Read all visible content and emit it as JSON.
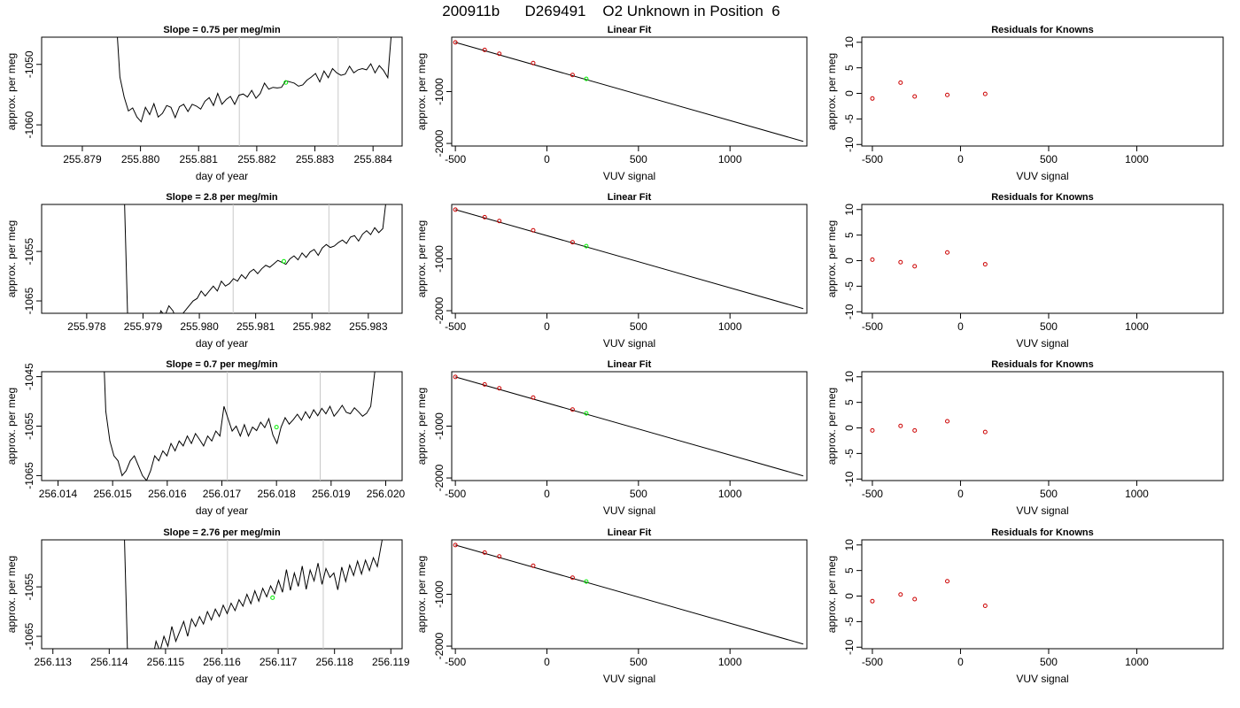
{
  "title": "200911b      D269491    O2 Unknown in Position  6",
  "colors": {
    "line": "#000000",
    "vline": "#c8c8c8",
    "known": "#cc0000",
    "unknown": "#00ee00"
  },
  "rows": [
    {
      "trace": {
        "title": "Slope =  0.75  per meg/min",
        "xlabel": "day of year",
        "ylabel": "approx. per meg",
        "xlim": [
          255.8783,
          255.8845
        ],
        "ylim": [
          -1063.5,
          -1045.5
        ],
        "xticks": [
          "255.879",
          "255.880",
          "255.881",
          "255.882",
          "255.883",
          "255.884"
        ],
        "xtick_values": [
          255.879,
          255.88,
          255.881,
          255.882,
          255.883,
          255.884
        ],
        "yticks": [
          "-1050",
          "-1060"
        ],
        "ytick_values": [
          -1050,
          -1060
        ],
        "vlines": [
          255.8817,
          255.8834
        ],
        "start_day": 255.8795,
        "end_day": 255.8844,
        "levels": [
          -1022.9,
          -1040.9,
          -1052.1,
          -1055.4,
          -1057.7,
          -1057.2,
          -1058.7,
          -1059.5,
          -1057.1,
          -1058.3,
          -1056.5,
          -1058.7,
          -1058.1,
          -1056.8,
          -1057.1,
          -1058.8,
          -1057.0,
          -1056.6,
          -1057.8,
          -1056.6,
          -1056.9,
          -1057.4,
          -1056.1,
          -1055.5,
          -1056.8,
          -1054.8,
          -1056.6,
          -1055.8,
          -1055.3,
          -1056.6,
          -1055.1,
          -1054.9,
          -1055.4,
          -1054.3,
          -1055.6,
          -1054.8,
          -1053.1,
          -1054.1,
          -1053.8,
          -1053.9,
          -1053.8,
          -1052.7,
          -1052.9,
          -1053.1,
          -1053.6,
          -1053.4,
          -1052.6,
          -1052.1,
          -1051.5,
          -1052.9,
          -1051.1,
          -1052.2,
          -1050.7,
          -1051.4,
          -1051.8,
          -1051.6,
          -1050.3,
          -1051.4,
          -1050.9,
          -1050.7,
          -1050.9,
          -1049.9,
          -1051.4,
          -1050.2,
          -1051.0,
          -1052.2,
          -1043.5,
          -1033.8
        ],
        "unknown_point": [
          255.8825,
          -1053.0
        ]
      },
      "fit": {
        "title": "Linear Fit",
        "xlabel": "VUV signal",
        "ylabel": "approx. per meg",
        "xlim": [
          -520,
          1420
        ],
        "ylim": [
          -2050,
          50
        ],
        "xticks": [
          "-500",
          "0",
          "500",
          "1000"
        ],
        "xtick_values": [
          -500,
          0,
          500,
          1000
        ],
        "yticks": [
          "-1000",
          "-2000"
        ],
        "ytick_values": [
          -1000,
          -2000
        ],
        "line": [
          [
            -500,
            -50
          ],
          [
            1400,
            -1960
          ]
        ],
        "knowns": [
          [
            -500,
            -50
          ],
          [
            -340,
            -195
          ],
          [
            -260,
            -270
          ],
          [
            -75,
            -450
          ],
          [
            140,
            -680
          ]
        ],
        "unknown": [
          [
            215,
            -755
          ]
        ]
      },
      "resid": {
        "title": "Residuals for Knowns",
        "xlabel": "VUV signal",
        "ylabel": "approx. per meg",
        "xlim": [
          -560,
          1490
        ],
        "ylim": [
          -10.3,
          11
        ],
        "xticks": [
          "-500",
          "0",
          "500",
          "1000"
        ],
        "xtick_values": [
          -500,
          0,
          500,
          1000
        ],
        "yticks": [
          "-10",
          "-5",
          "0",
          "5",
          "10"
        ],
        "ytick_values": [
          -10,
          -5,
          0,
          5,
          10
        ],
        "points": [
          [
            -500,
            -1.0
          ],
          [
            -340,
            2.1
          ],
          [
            -260,
            -0.6
          ],
          [
            -75,
            -0.3
          ],
          [
            140,
            -0.1
          ]
        ]
      }
    },
    {
      "trace": {
        "title": "Slope =  2.8  per meg/min",
        "xlabel": "day of year",
        "ylabel": "approx. per meg",
        "xlim": [
          255.9772,
          255.9836
        ],
        "ylim": [
          -1067.5,
          -1045.5
        ],
        "xticks": [
          "255.978",
          "255.979",
          "255.980",
          "255.981",
          "255.982",
          "255.983"
        ],
        "xtick_values": [
          255.978,
          255.979,
          255.98,
          255.981,
          255.982,
          255.983
        ],
        "yticks": [
          "-1055",
          "-1065"
        ],
        "ytick_values": [
          -1055,
          -1065
        ],
        "vlines": [
          255.9806,
          255.9823
        ],
        "start_day": 255.9786,
        "end_day": 255.9834,
        "levels": [
          -1020,
          -1045,
          -1075,
          -1085,
          -1080,
          -1072,
          -1070,
          -1068,
          -1069,
          -1070,
          -1067,
          -1068,
          -1066,
          -1067,
          -1069,
          -1068,
          -1067,
          -1066,
          -1065,
          -1064.5,
          -1063,
          -1064,
          -1063,
          -1062,
          -1063,
          -1061,
          -1062,
          -1061.5,
          -1060.5,
          -1061,
          -1059.7,
          -1060.5,
          -1059.2,
          -1058.6,
          -1059.5,
          -1058.5,
          -1057.8,
          -1058.2,
          -1057.5,
          -1056.8,
          -1057.2,
          -1057.6,
          -1056.5,
          -1055.9,
          -1056.7,
          -1055.3,
          -1056.2,
          -1055.1,
          -1054.6,
          -1055.8,
          -1054.3,
          -1053.6,
          -1054.2,
          -1053.9,
          -1053.2,
          -1052.7,
          -1053.4,
          -1052.1,
          -1051.8,
          -1052.9,
          -1051.5,
          -1050.8,
          -1051.6,
          -1050.2,
          -1051.2,
          -1050.4,
          -1043.5,
          -1036
        ],
        "unknown_point": [
          255.9815,
          -1057.0
        ]
      },
      "fit": {
        "title": "Linear Fit",
        "xlabel": "VUV signal",
        "ylabel": "approx. per meg",
        "xlim": [
          -520,
          1420
        ],
        "ylim": [
          -2050,
          50
        ],
        "xticks": [
          "-500",
          "0",
          "500",
          "1000"
        ],
        "xtick_values": [
          -500,
          0,
          500,
          1000
        ],
        "yticks": [
          "-1000",
          "-2000"
        ],
        "ytick_values": [
          -1000,
          -2000
        ],
        "line": [
          [
            -500,
            -50
          ],
          [
            1400,
            -1960
          ]
        ],
        "knowns": [
          [
            -500,
            -50
          ],
          [
            -340,
            -195
          ],
          [
            -260,
            -270
          ],
          [
            -75,
            -450
          ],
          [
            140,
            -680
          ]
        ],
        "unknown": [
          [
            215,
            -755
          ]
        ]
      },
      "resid": {
        "title": "Residuals for Knowns",
        "xlabel": "VUV signal",
        "ylabel": "approx. per meg",
        "xlim": [
          -560,
          1490
        ],
        "ylim": [
          -10.3,
          11
        ],
        "xticks": [
          "-500",
          "0",
          "500",
          "1000"
        ],
        "xtick_values": [
          -500,
          0,
          500,
          1000
        ],
        "yticks": [
          "-10",
          "-5",
          "0",
          "5",
          "10"
        ],
        "ytick_values": [
          -10,
          -5,
          0,
          5,
          10
        ],
        "points": [
          [
            -500,
            0.2
          ],
          [
            -340,
            -0.3
          ],
          [
            -260,
            -1.1
          ],
          [
            -75,
            1.6
          ],
          [
            140,
            -0.7
          ]
        ]
      }
    },
    {
      "trace": {
        "title": "Slope =  0.7  per meg/min",
        "xlabel": "day of year",
        "ylabel": "approx. per meg",
        "xlim": [
          256.0137,
          256.0203
        ],
        "ylim": [
          -1066.0,
          -1044.0
        ],
        "xticks": [
          "256.014",
          "256.015",
          "256.016",
          "256.017",
          "256.018",
          "256.019",
          "256.020"
        ],
        "xtick_values": [
          256.014,
          256.015,
          256.016,
          256.017,
          256.018,
          256.019,
          256.02
        ],
        "yticks": [
          "-1045",
          "-1055",
          "-1065"
        ],
        "ytick_values": [
          -1045,
          -1055,
          -1065
        ],
        "vlines": [
          256.0171,
          256.0188
        ],
        "start_day": 256.0148,
        "end_day": 256.0198,
        "levels": [
          -1030,
          -1052,
          -1058,
          -1061,
          -1062,
          -1065,
          -1064,
          -1062,
          -1061,
          -1063,
          -1065,
          -1066,
          -1064,
          -1061,
          -1062,
          -1060,
          -1061,
          -1058.5,
          -1060,
          -1058,
          -1059,
          -1057,
          -1058.5,
          -1056.5,
          -1057.7,
          -1059,
          -1057,
          -1058,
          -1056,
          -1057,
          -1051,
          -1053.5,
          -1056,
          -1055,
          -1057,
          -1054.7,
          -1057,
          -1055.2,
          -1055.9,
          -1054.2,
          -1055.3,
          -1053.5,
          -1056.8,
          -1058.5,
          -1055.2,
          -1053.3,
          -1054.6,
          -1053.7,
          -1052.6,
          -1053.8,
          -1052.1,
          -1053.4,
          -1051.7,
          -1052.9,
          -1051.4,
          -1052.5,
          -1051.0,
          -1053.0,
          -1052.0,
          -1050.8,
          -1052.2,
          -1052.5,
          -1051.3,
          -1052.1,
          -1053.0,
          -1052.4,
          -1051.0,
          -1044
        ],
        "unknown_point": [
          256.018,
          -1055.2
        ]
      },
      "fit": {
        "title": "Linear Fit",
        "xlabel": "VUV signal",
        "ylabel": "approx. per meg",
        "xlim": [
          -520,
          1420
        ],
        "ylim": [
          -2050,
          50
        ],
        "xticks": [
          "-500",
          "0",
          "500",
          "1000"
        ],
        "xtick_values": [
          -500,
          0,
          500,
          1000
        ],
        "yticks": [
          "-1000",
          "-2000"
        ],
        "ytick_values": [
          -1000,
          -2000
        ],
        "line": [
          [
            -500,
            -50
          ],
          [
            1400,
            -1960
          ]
        ],
        "knowns": [
          [
            -500,
            -50
          ],
          [
            -340,
            -195
          ],
          [
            -260,
            -270
          ],
          [
            -75,
            -450
          ],
          [
            140,
            -680
          ]
        ],
        "unknown": [
          [
            215,
            -755
          ]
        ]
      },
      "resid": {
        "title": "Residuals for Knowns",
        "xlabel": "VUV signal",
        "ylabel": "approx. per meg",
        "xlim": [
          -560,
          1490
        ],
        "ylim": [
          -10.3,
          11
        ],
        "xticks": [
          "-500",
          "0",
          "500",
          "1000"
        ],
        "xtick_values": [
          -500,
          0,
          500,
          1000
        ],
        "yticks": [
          "-10",
          "-5",
          "0",
          "5",
          "10"
        ],
        "ytick_values": [
          -10,
          -5,
          0,
          5,
          10
        ],
        "points": [
          [
            -500,
            -0.5
          ],
          [
            -340,
            0.4
          ],
          [
            -260,
            -0.5
          ],
          [
            -75,
            1.3
          ],
          [
            140,
            -0.8
          ]
        ]
      }
    },
    {
      "trace": {
        "title": "Slope =  2.76  per meg/min",
        "xlabel": "day of year",
        "ylabel": "approx. per meg",
        "xlim": [
          256.1128,
          256.1192
        ],
        "ylim": [
          -1067.5,
          -1045.5
        ],
        "xticks": [
          "256.113",
          "256.114",
          "256.115",
          "256.116",
          "256.117",
          "256.118",
          "256.119"
        ],
        "xtick_values": [
          256.113,
          256.114,
          256.115,
          256.116,
          256.117,
          256.118,
          256.119
        ],
        "yticks": [
          "-1055",
          "-1065"
        ],
        "ytick_values": [
          -1055,
          -1065
        ],
        "vlines": [
          256.1161,
          256.1178
        ],
        "start_day": 256.1142,
        "end_day": 256.1189,
        "levels": [
          -1020,
          -1045,
          -1075,
          -1085,
          -1080,
          -1075,
          -1072,
          -1068,
          -1070,
          -1066,
          -1068,
          -1065,
          -1067,
          -1063,
          -1066,
          -1064,
          -1062,
          -1065,
          -1061.5,
          -1063,
          -1061,
          -1062.5,
          -1060,
          -1061.7,
          -1059.5,
          -1061,
          -1058.7,
          -1060.4,
          -1058.3,
          -1059.8,
          -1057.6,
          -1058.9,
          -1056.5,
          -1058.4,
          -1055.8,
          -1057.9,
          -1055.3,
          -1057.0,
          -1054.8,
          -1056.4,
          -1053.7,
          -1056.1,
          -1051.5,
          -1055.7,
          -1052.2,
          -1054.9,
          -1050.8,
          -1055.5,
          -1051.6,
          -1053.8,
          -1050.2,
          -1054.5,
          -1051.3,
          -1053.1,
          -1052.2,
          -1055.6,
          -1051.0,
          -1053.9,
          -1050.6,
          -1052.7,
          -1049.8,
          -1052.4,
          -1049.6,
          -1051.7,
          -1049.1,
          -1050.9,
          -1046.5,
          -1042
        ],
        "unknown_point": [
          256.1169,
          -1057.2
        ]
      },
      "fit": {
        "title": "Linear Fit",
        "xlabel": "VUV signal",
        "ylabel": "approx. per meg",
        "xlim": [
          -520,
          1420
        ],
        "ylim": [
          -2050,
          50
        ],
        "xticks": [
          "-500",
          "0",
          "500",
          "1000"
        ],
        "xtick_values": [
          -500,
          0,
          500,
          1000
        ],
        "yticks": [
          "-1000",
          "-2000"
        ],
        "ytick_values": [
          -1000,
          -2000
        ],
        "line": [
          [
            -500,
            -50
          ],
          [
            1400,
            -1960
          ]
        ],
        "knowns": [
          [
            -500,
            -50
          ],
          [
            -340,
            -195
          ],
          [
            -260,
            -270
          ],
          [
            -75,
            -450
          ],
          [
            140,
            -680
          ]
        ],
        "unknown": [
          [
            215,
            -755
          ]
        ]
      },
      "resid": {
        "title": "Residuals for Knowns",
        "xlabel": "VUV signal",
        "ylabel": "approx. per meg",
        "xlim": [
          -560,
          1490
        ],
        "ylim": [
          -10.3,
          11
        ],
        "xticks": [
          "-500",
          "0",
          "500",
          "1000"
        ],
        "xtick_values": [
          -500,
          0,
          500,
          1000
        ],
        "yticks": [
          "-10",
          "-5",
          "0",
          "5",
          "10"
        ],
        "ytick_values": [
          -10,
          -5,
          0,
          5,
          10
        ],
        "points": [
          [
            -500,
            -1.0
          ],
          [
            -340,
            0.3
          ],
          [
            -260,
            -0.6
          ],
          [
            -75,
            2.9
          ],
          [
            140,
            -1.9
          ]
        ]
      }
    }
  ]
}
